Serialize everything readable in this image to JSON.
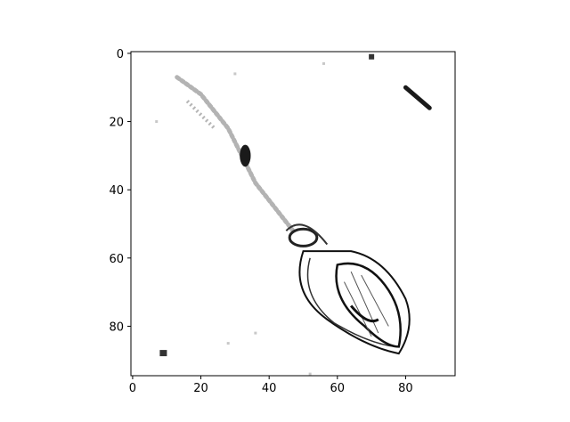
{
  "chart_data": {
    "type": "heatmap",
    "title": "",
    "xlabel": "",
    "ylabel": "",
    "colormap": "gray_r",
    "xlim": [
      -0.5,
      94.5
    ],
    "ylim": [
      94.5,
      -0.5
    ],
    "x_ticks": [
      0,
      20,
      40,
      60,
      80
    ],
    "y_ticks": [
      0,
      20,
      40,
      60,
      80
    ],
    "x_tick_labels": [
      "0",
      "20",
      "40",
      "60",
      "80"
    ],
    "y_tick_labels": [
      "0",
      "20",
      "40",
      "60",
      "80"
    ],
    "grid": false,
    "legend": "none",
    "image_description_features": [
      {
        "feature": "stem",
        "from": [
          13,
          7
        ],
        "to": [
          47,
          52
        ]
      },
      {
        "feature": "dark-blob",
        "center": [
          33,
          30
        ]
      },
      {
        "feature": "body-outer",
        "center": [
          63,
          70
        ]
      },
      {
        "feature": "body-inner",
        "center": [
          68,
          74
        ]
      },
      {
        "feature": "speck-top",
        "center": [
          70,
          1
        ]
      },
      {
        "feature": "dash-top-right",
        "from": [
          80,
          10
        ],
        "to": [
          87,
          16
        ]
      },
      {
        "feature": "speck-bottom-left",
        "center": [
          9,
          88
        ]
      }
    ]
  }
}
